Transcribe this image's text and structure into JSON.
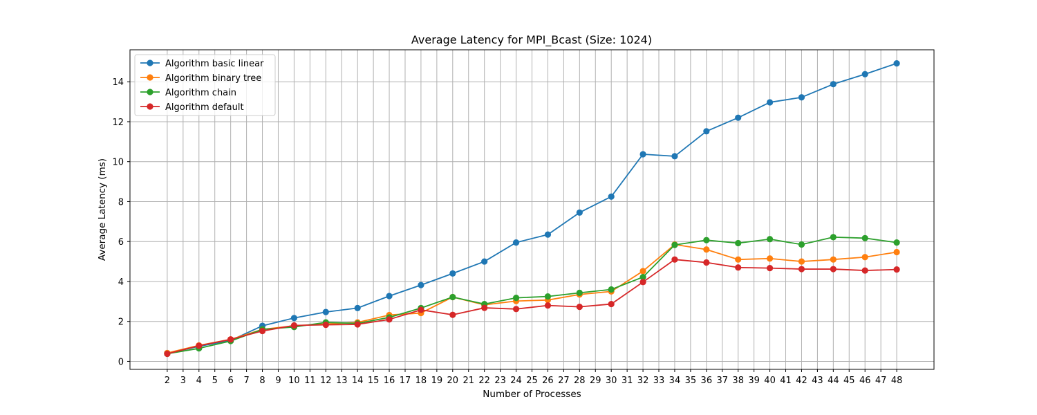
{
  "chart_data": {
    "type": "line",
    "title": "Average Latency for MPI_Bcast (Size: 1024)",
    "xlabel": "Number of Processes",
    "ylabel": "Average Latency (ms)",
    "x_ticks": [
      2,
      3,
      4,
      5,
      6,
      7,
      8,
      9,
      10,
      11,
      12,
      13,
      14,
      15,
      16,
      17,
      18,
      19,
      20,
      21,
      22,
      23,
      24,
      25,
      26,
      27,
      28,
      29,
      30,
      31,
      32,
      33,
      34,
      35,
      36,
      37,
      38,
      39,
      40,
      41,
      42,
      43,
      44,
      45,
      46,
      47,
      48
    ],
    "y_ticks": [
      0,
      2,
      4,
      6,
      8,
      10,
      12,
      14
    ],
    "xlim": [
      -0.35,
      50.35
    ],
    "ylim": [
      -0.4,
      15.6
    ],
    "grid": true,
    "legend_position": "top-left",
    "x": [
      2,
      4,
      6,
      8,
      10,
      12,
      14,
      16,
      18,
      20,
      22,
      24,
      26,
      28,
      30,
      32,
      34,
      36,
      38,
      40,
      42,
      44,
      46,
      48
    ],
    "series": [
      {
        "name": "Algorithm basic linear",
        "color": "#1f77b4",
        "values": [
          0.4,
          0.75,
          1.05,
          1.78,
          2.17,
          2.47,
          2.67,
          3.27,
          3.82,
          4.4,
          5.0,
          5.95,
          6.35,
          7.45,
          8.25,
          10.37,
          10.27,
          11.52,
          12.2,
          12.97,
          13.22,
          13.88,
          14.38,
          14.92
        ]
      },
      {
        "name": "Algorithm binary tree",
        "color": "#ff7f0e",
        "values": [
          0.42,
          0.8,
          1.1,
          1.6,
          1.78,
          1.87,
          1.95,
          2.32,
          2.42,
          3.22,
          2.83,
          3.02,
          3.07,
          3.35,
          3.5,
          4.52,
          5.85,
          5.6,
          5.1,
          5.15,
          5.0,
          5.1,
          5.22,
          5.47
        ]
      },
      {
        "name": "Algorithm chain",
        "color": "#2ca02c",
        "values": [
          0.38,
          0.65,
          1.02,
          1.6,
          1.72,
          1.95,
          1.9,
          2.2,
          2.67,
          3.22,
          2.87,
          3.18,
          3.25,
          3.43,
          3.6,
          4.22,
          5.83,
          6.07,
          5.92,
          6.12,
          5.85,
          6.22,
          6.17,
          5.95
        ]
      },
      {
        "name": "Algorithm default",
        "color": "#d62728",
        "values": [
          0.38,
          0.78,
          1.1,
          1.52,
          1.8,
          1.83,
          1.85,
          2.1,
          2.58,
          2.33,
          2.68,
          2.62,
          2.8,
          2.73,
          2.87,
          3.97,
          5.1,
          4.95,
          4.7,
          4.67,
          4.62,
          4.62,
          4.55,
          4.6
        ]
      }
    ]
  }
}
